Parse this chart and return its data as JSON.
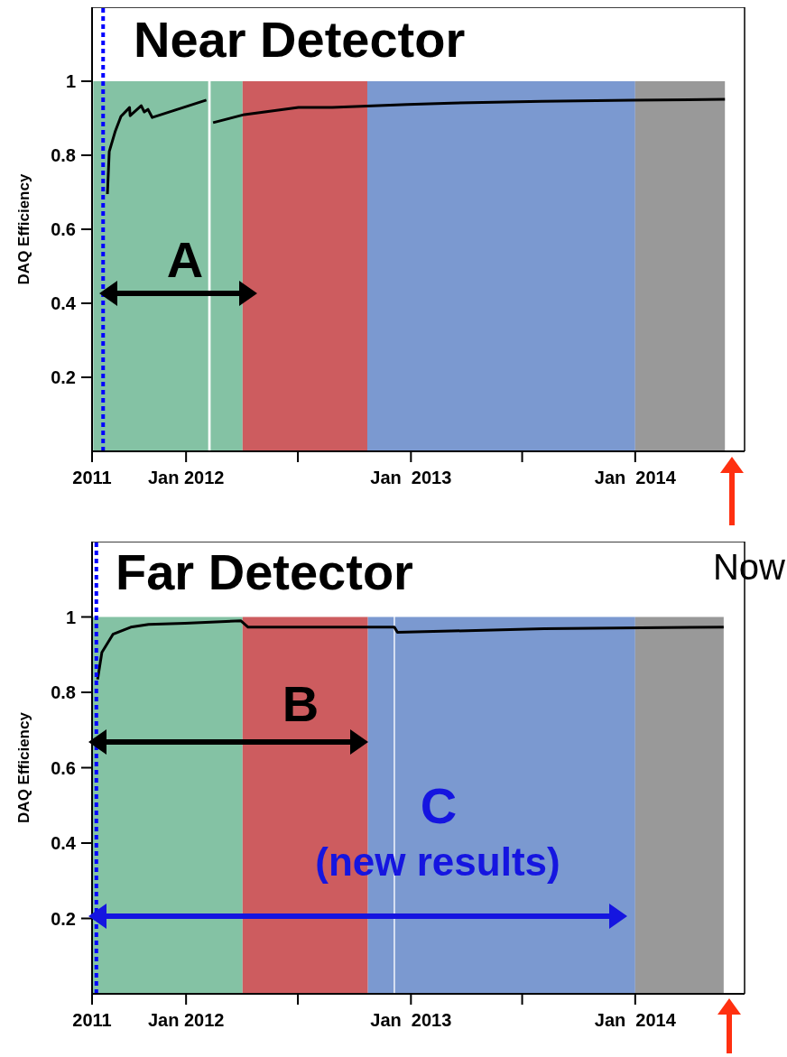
{
  "chart_data": [
    {
      "type": "line",
      "title": "Near Detector",
      "ylabel": "DAQ Efficiency",
      "annotations": [
        "A",
        "Now"
      ],
      "xlim": [
        "2011-08-01",
        "2014-06-28"
      ],
      "ylim": [
        0,
        1.2
      ],
      "xticks": [
        {
          "value": "2011-08-01",
          "label": "2011"
        },
        {
          "value": "2012-01-01",
          "label": "Jan 2012"
        },
        {
          "value": "2012-07-01",
          "label": null
        },
        {
          "value": "2013-01-01",
          "label": "Jan  2013"
        },
        {
          "value": "2013-07-01",
          "label": null
        },
        {
          "value": "2014-01-01",
          "label": "Jan  2014"
        }
      ],
      "yticks": [
        0.2,
        0.4,
        0.6,
        0.8,
        1
      ],
      "grid": false,
      "legend": false,
      "marker": "none",
      "line_style": "solid",
      "ref_lines": [
        {
          "axis": "x",
          "value": "2011-08-19",
          "label": null,
          "color": "#0000ff",
          "line_style": "dotted"
        }
      ],
      "series": [
        {
          "type": "area",
          "color": "#84c2a4",
          "x": [
            "2011-08-03",
            "2012-02-06",
            "2012-02-08",
            "2012-02-10",
            "2012-04-02"
          ],
          "values": [
            1,
            1,
            null,
            1,
            1
          ]
        },
        {
          "type": "area",
          "color": "#cd5c5f",
          "x": [
            "2012-04-02",
            "2012-10-22"
          ],
          "values": [
            1,
            1
          ]
        },
        {
          "type": "area",
          "color": "#7b99d0",
          "x": [
            "2012-10-22",
            "2014-01-01"
          ],
          "values": [
            1,
            1
          ]
        },
        {
          "type": "area",
          "color": "#999999",
          "x": [
            "2014-01-01",
            "2014-05-27"
          ],
          "values": [
            1,
            1
          ]
        },
        {
          "type": "line",
          "color": "#000000",
          "x": [
            "2011-08-26",
            "2011-08-29",
            "2011-09-08",
            "2011-09-17",
            "2011-10-01",
            "2011-10-02",
            "2011-10-20",
            "2011-10-25",
            "2011-10-31",
            "2011-11-07",
            "2012-02-03",
            "2012-02-08",
            "2012-02-14",
            "2012-04-05",
            "2012-07-02",
            "2012-08-26",
            "2012-12-26",
            "2013-03-08",
            "2013-08-02",
            "2013-12-27",
            "2014-05-27"
          ],
          "values": [
            0.695,
            0.81,
            0.866,
            0.905,
            0.929,
            0.907,
            0.934,
            0.917,
            0.924,
            0.902,
            0.949,
            null,
            0.888,
            0.91,
            0.929,
            0.929,
            0.937,
            0.941,
            0.946,
            0.949,
            0.951
          ]
        }
      ]
    },
    {
      "type": "line",
      "title": "Far Detector",
      "ylabel": "DAQ Efficiency",
      "annotations": [
        "B",
        "C",
        "(new results)"
      ],
      "xlim": [
        "2011-08-01",
        "2014-06-28"
      ],
      "ylim": [
        0,
        1.2
      ],
      "xticks": [
        {
          "value": "2011-08-01",
          "label": "2011"
        },
        {
          "value": "2012-01-01",
          "label": "Jan 2012"
        },
        {
          "value": "2012-07-01",
          "label": null
        },
        {
          "value": "2013-01-01",
          "label": "Jan  2013"
        },
        {
          "value": "2013-07-01",
          "label": null
        },
        {
          "value": "2014-01-01",
          "label": "Jan  2014"
        }
      ],
      "yticks": [
        0.2,
        0.4,
        0.6,
        0.8,
        1
      ],
      "grid": false,
      "legend": false,
      "marker": "none",
      "line_style": "solid",
      "ref_lines": [
        {
          "axis": "x",
          "value": "2011-08-08",
          "label": null,
          "color": "#0000ff",
          "line_style": "dotted"
        }
      ],
      "series": [
        {
          "type": "area",
          "color": "#84c2a4",
          "x": [
            "2011-08-01",
            "2012-04-02"
          ],
          "values": [
            1,
            1
          ]
        },
        {
          "type": "area",
          "color": "#cd5c5f",
          "x": [
            "2012-04-02",
            "2012-10-23"
          ],
          "values": [
            1,
            1
          ]
        },
        {
          "type": "area",
          "color": "#7b99d0",
          "x": [
            "2012-10-23",
            "2012-12-04",
            "2012-12-05",
            "2012-12-06",
            "2014-01-01"
          ],
          "values": [
            1,
            1,
            null,
            1,
            1
          ]
        },
        {
          "type": "area",
          "color": "#999999",
          "x": [
            "2014-01-01",
            "2014-05-25"
          ],
          "values": [
            1,
            1
          ]
        },
        {
          "type": "line",
          "color": "#000000",
          "x": [
            "2011-08-10",
            "2011-08-17",
            "2011-09-04",
            "2011-10-03",
            "2011-11-01",
            "2011-12-30",
            "2012-03-30",
            "2012-04-11",
            "2012-10-18",
            "2012-12-05",
            "2012-12-10",
            "2013-08-06",
            "2014-05-25"
          ],
          "values": [
            0.834,
            0.906,
            0.954,
            0.973,
            0.98,
            0.983,
            0.99,
            0.973,
            0.973,
            0.973,
            0.959,
            0.969,
            0.973
          ]
        }
      ]
    }
  ]
}
